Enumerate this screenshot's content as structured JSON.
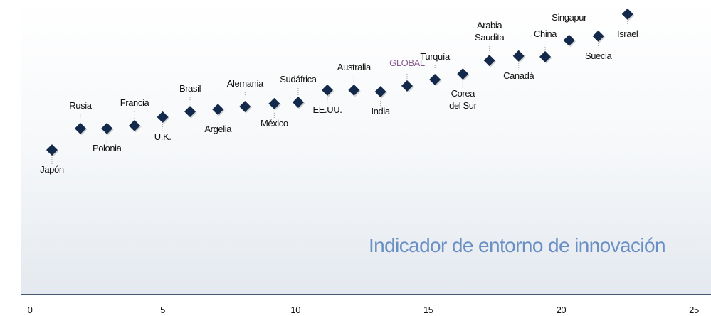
{
  "chart_data": {
    "type": "scatter",
    "annotation": "Indicador de entorno de innovación",
    "labels": [
      [
        "Japón"
      ],
      [
        "Rusia"
      ],
      [
        "Polonia"
      ],
      [
        "Francia"
      ],
      [
        "U.K."
      ],
      [
        "Brasil"
      ],
      [
        "Argelia"
      ],
      [
        "Alemania"
      ],
      [
        "México"
      ],
      [
        "Sudáfrica"
      ],
      [
        "EE.UU."
      ],
      [
        "Australia"
      ],
      [
        "India"
      ],
      [
        "GLOBAL"
      ],
      [
        "Turquía"
      ],
      [
        "Corea",
        "del Sur"
      ],
      [
        "Arabia",
        "Saudita"
      ],
      [
        "Canadá"
      ],
      [
        "China"
      ],
      [
        "Singapur"
      ],
      [
        "Suecia"
      ],
      [
        "Israel"
      ]
    ],
    "x": [
      0.83,
      1.9,
      2.9,
      3.94,
      5.0,
      6.03,
      7.08,
      8.1,
      9.2,
      10.1,
      11.2,
      12.2,
      13.2,
      14.2,
      15.25,
      16.3,
      17.3,
      18.4,
      19.4,
      20.3,
      21.4,
      22.5
    ],
    "y": [
      5.47,
      6.28,
      6.28,
      6.39,
      6.71,
      6.92,
      7.0,
      7.11,
      7.22,
      7.27,
      7.73,
      7.73,
      7.67,
      7.89,
      8.13,
      8.34,
      8.85,
      9.02,
      8.99,
      9.61,
      9.77,
      10.6
    ],
    "color": "#13294b",
    "highlight_color": "#8a5c8e",
    "highlight": "GLOBAL",
    "xlim": [
      0,
      25
    ],
    "xticks": [
      0,
      5,
      10,
      15,
      20,
      25
    ],
    "ylim": [
      0,
      11
    ]
  }
}
